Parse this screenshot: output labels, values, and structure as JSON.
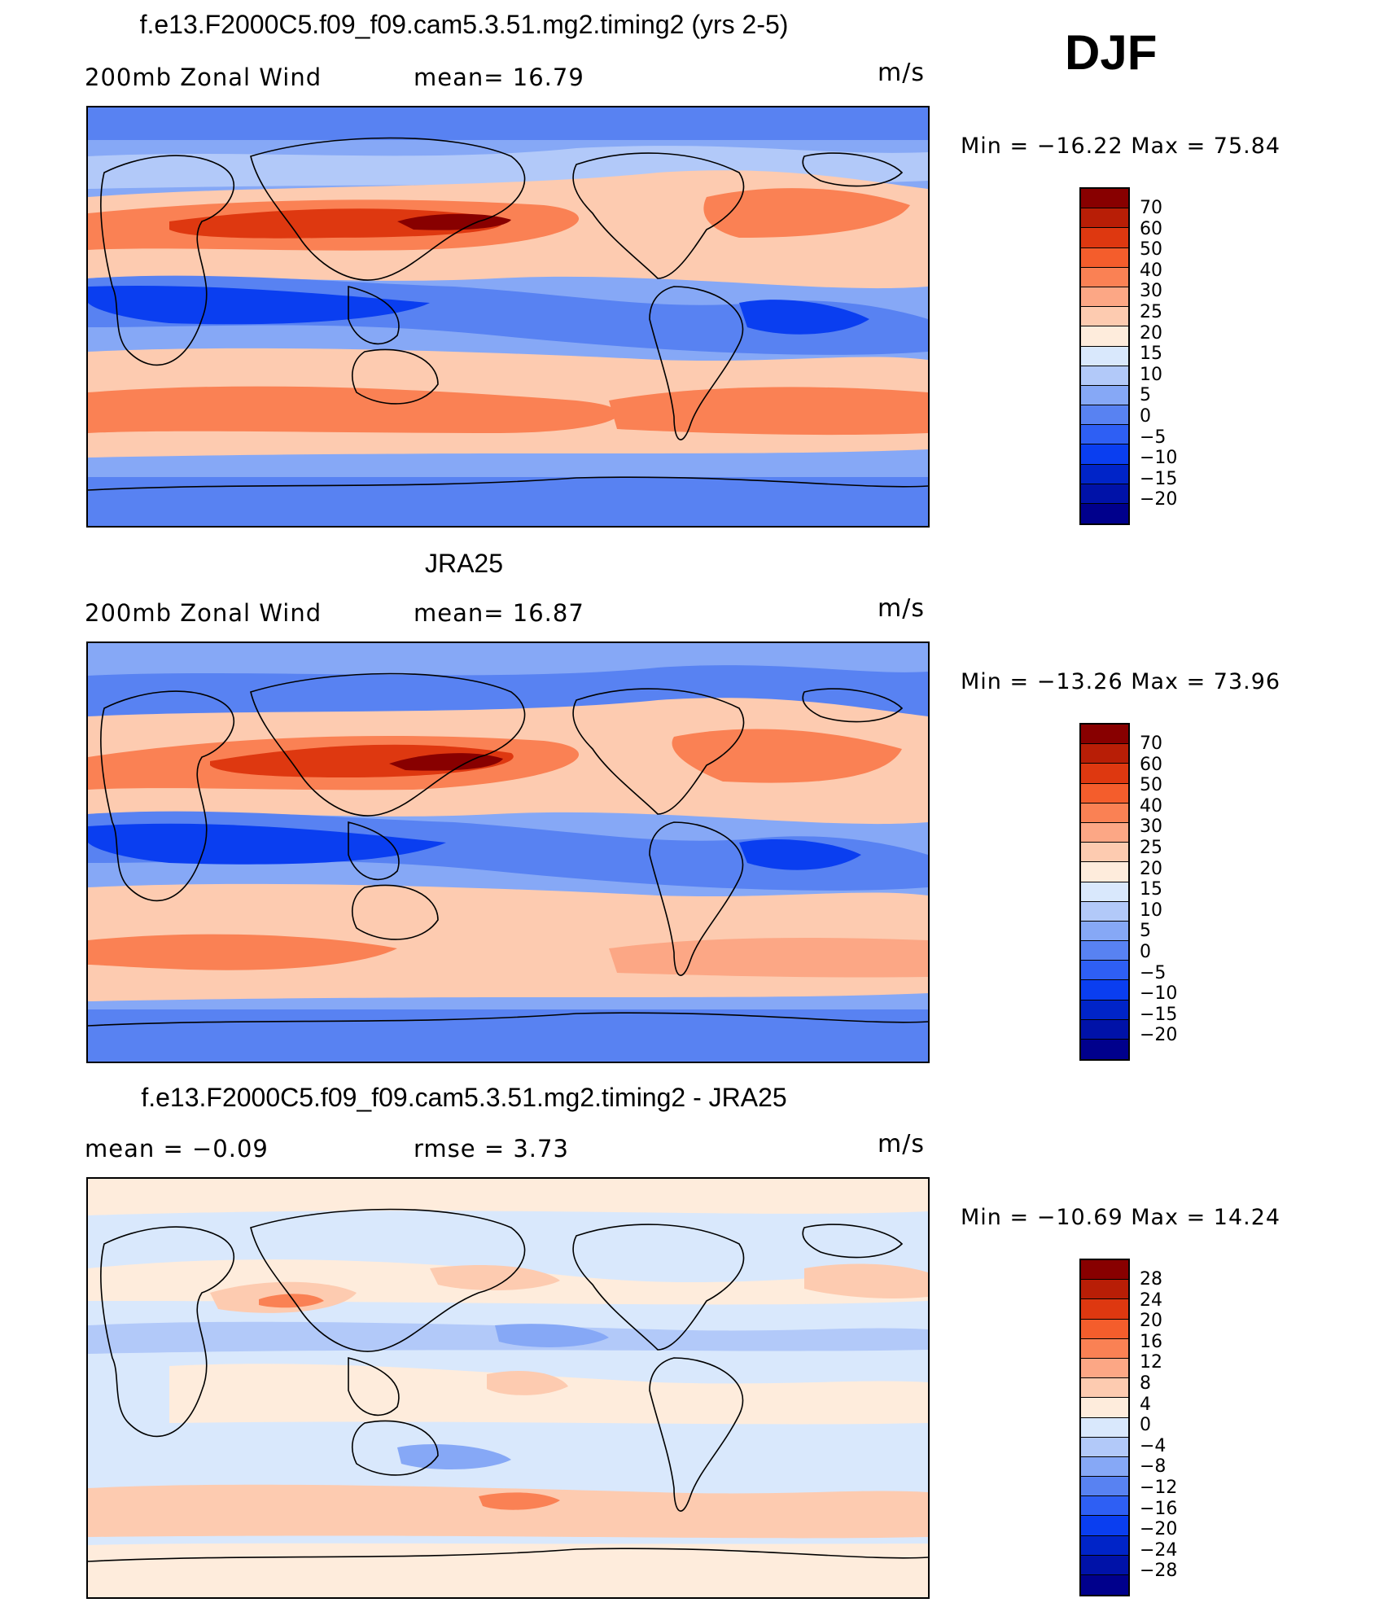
{
  "season": "DJF",
  "palettes": {
    "abs": [
      "#00008c",
      "#0012a8",
      "#0024c8",
      "#0a3ef0",
      "#2e5ff4",
      "#5882f2",
      "#86a8f6",
      "#b2c9f9",
      "#d9e8fc",
      "#feecdc",
      "#fdcbb0",
      "#fca785",
      "#fa8154",
      "#f45d2c",
      "#de3810",
      "#b81e06",
      "#880000"
    ],
    "diff": [
      "#00008c",
      "#0012a8",
      "#0024c8",
      "#0a3ef0",
      "#2e5ff4",
      "#5882f2",
      "#86a8f6",
      "#b2c9f9",
      "#d9e8fc",
      "#feecdc",
      "#fdcbb0",
      "#fca785",
      "#fa8154",
      "#f45d2c",
      "#de3810",
      "#b81e06",
      "#880000"
    ]
  },
  "panels": [
    {
      "title": "f.e13.F2000C5.f09_f09.cam5.3.51.mg2.timing2 (yrs 2-5)",
      "left_label": "200mb  Zonal  Wind",
      "center_label": "mean=   16.79",
      "units": "m/s",
      "min_max": "Min  =  −16.22  Max  =   75.84",
      "colorbar_labels": [
        "70",
        "60",
        "50",
        "40",
        "30",
        "25",
        "20",
        "15",
        "10",
        "5",
        "0",
        "−5",
        "−10",
        "−15",
        "−20"
      ]
    },
    {
      "title": "JRA25",
      "left_label": "200mb  Zonal  Wind",
      "center_label": "mean=   16.87",
      "units": "m/s",
      "min_max": "Min  =  −13.26  Max  =   73.96",
      "colorbar_labels": [
        "70",
        "60",
        "50",
        "40",
        "30",
        "25",
        "20",
        "15",
        "10",
        "5",
        "0",
        "−5",
        "−10",
        "−15",
        "−20"
      ]
    },
    {
      "title": "f.e13.F2000C5.f09_f09.cam5.3.51.mg2.timing2 - JRA25",
      "left_label": "mean  =    −0.09",
      "center_label": "rmse  =     3.73",
      "units": "m/s",
      "min_max": "Min  =  −10.69  Max  =   14.24",
      "colorbar_labels": [
        "28",
        "24",
        "20",
        "16",
        "12",
        "8",
        "4",
        "0",
        "−4",
        "−8",
        "−12",
        "−16",
        "−20",
        "−24",
        "−28"
      ]
    }
  ]
}
